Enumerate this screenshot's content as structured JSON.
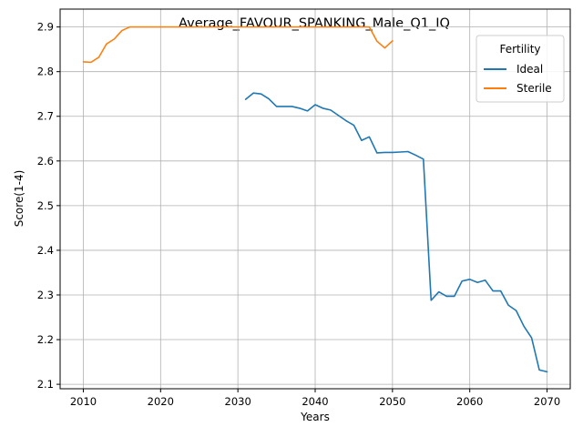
{
  "chart_data": {
    "type": "line",
    "title": "Average_FAVOUR_SPANKING_Male_Q1_IQ",
    "xlabel": "Years",
    "ylabel": "Score(1-4)",
    "xlim": [
      2007,
      2073
    ],
    "ylim": [
      2.09,
      2.94
    ],
    "xticks": [
      2010,
      2020,
      2030,
      2040,
      2050,
      2060,
      2070
    ],
    "yticks": [
      2.1,
      2.2,
      2.3,
      2.4,
      2.5,
      2.6,
      2.7,
      2.8,
      2.9
    ],
    "grid": true,
    "legend": {
      "title": "Fertility",
      "placement": "top-right"
    },
    "series": [
      {
        "name": "Ideal",
        "color": "#1f77b4",
        "x": [
          2031,
          2032,
          2033,
          2034,
          2035,
          2036,
          2037,
          2038,
          2039,
          2040,
          2041,
          2042,
          2043,
          2044,
          2045,
          2046,
          2047,
          2048,
          2049,
          2050,
          2051,
          2052,
          2053,
          2054,
          2055,
          2056,
          2057,
          2058,
          2059,
          2060,
          2061,
          2062,
          2063,
          2064,
          2065,
          2066,
          2067,
          2068,
          2069,
          2070
        ],
        "y": [
          2.738,
          2.752,
          2.75,
          2.739,
          2.722,
          2.722,
          2.722,
          2.718,
          2.712,
          2.726,
          2.718,
          2.714,
          2.702,
          2.69,
          2.68,
          2.646,
          2.654,
          2.618,
          2.619,
          2.619,
          2.62,
          2.621,
          2.613,
          2.604,
          2.288,
          2.307,
          2.297,
          2.297,
          2.331,
          2.335,
          2.328,
          2.333,
          2.309,
          2.309,
          2.277,
          2.265,
          2.23,
          2.204,
          2.132,
          2.128
        ]
      },
      {
        "name": "Sterile",
        "color": "#ff7f0e",
        "x": [
          2010,
          2011,
          2012,
          2013,
          2014,
          2015,
          2016,
          2017,
          2018,
          2019,
          2020,
          2021,
          2022,
          2023,
          2024,
          2025,
          2026,
          2027,
          2028,
          2029,
          2030,
          2031,
          2032,
          2033,
          2034,
          2035,
          2036,
          2037,
          2038,
          2039,
          2040,
          2041,
          2042,
          2043,
          2044,
          2045,
          2046,
          2047,
          2048,
          2049,
          2050
        ],
        "y": [
          2.822,
          2.821,
          2.832,
          2.862,
          2.873,
          2.892,
          2.9,
          2.9,
          2.9,
          2.9,
          2.9,
          2.9,
          2.9,
          2.9,
          2.9,
          2.9,
          2.9,
          2.9,
          2.9,
          2.9,
          2.9,
          2.9,
          2.9,
          2.9,
          2.9,
          2.9,
          2.9,
          2.9,
          2.9,
          2.9,
          2.9,
          2.9,
          2.9,
          2.9,
          2.9,
          2.9,
          2.9,
          2.9,
          2.868,
          2.853,
          2.869
        ]
      }
    ]
  }
}
